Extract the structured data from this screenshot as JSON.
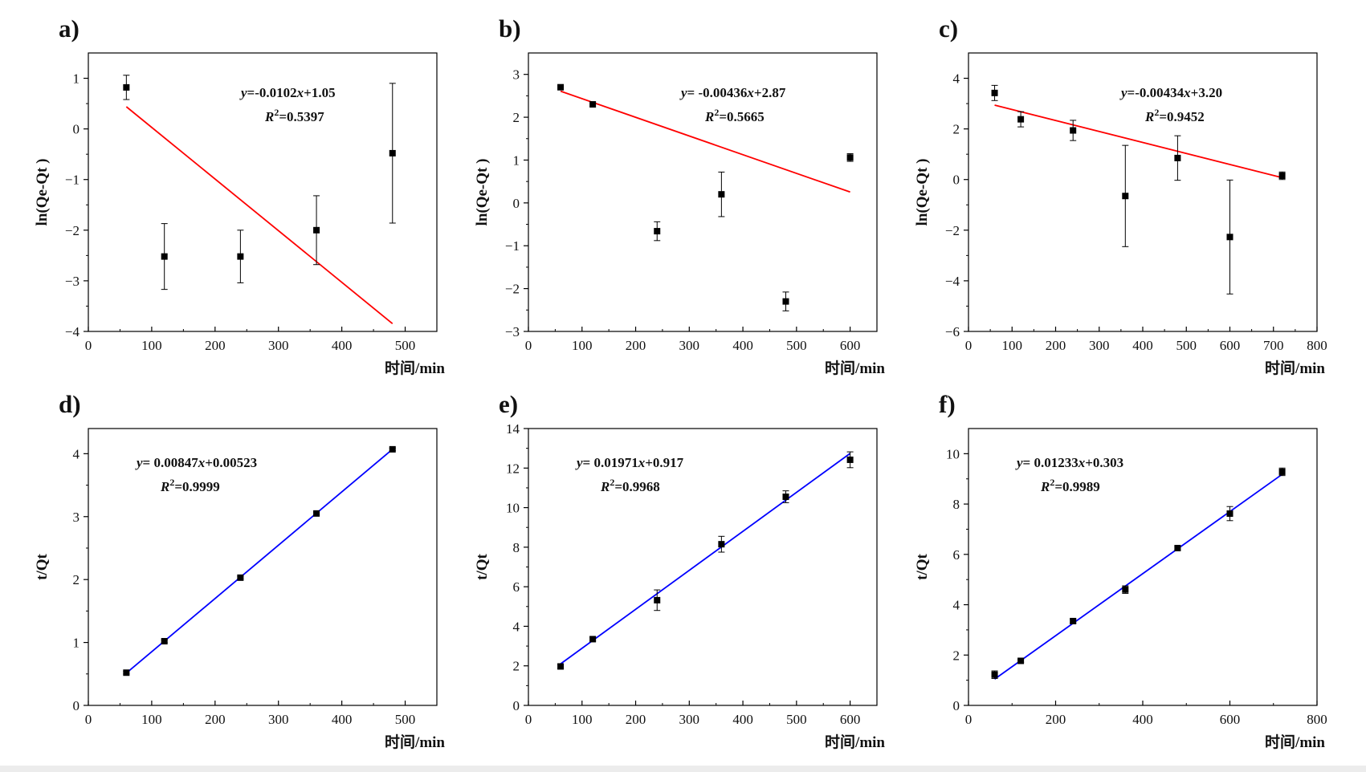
{
  "colors": {
    "fit_red": "#ff0000",
    "fit_blue": "#0000ff",
    "marker": "#000000",
    "axis": "#000000"
  },
  "chart_data": [
    {
      "label": "a)",
      "type": "scatter",
      "xlabel": "时间/min",
      "ylabel": "ln(Qe-Qt )",
      "xlim": [
        0,
        550
      ],
      "ylim": [
        -4,
        1.5
      ],
      "xticks": [
        0,
        100,
        200,
        300,
        400,
        500
      ],
      "yticks": [
        1,
        0,
        -1,
        -2,
        -3,
        -4
      ],
      "ytick_labels": [
        "1",
        "0",
        "−1",
        "−2",
        "−3",
        "−4"
      ],
      "points": [
        {
          "x": 60,
          "y": 0.82,
          "err": 0.24
        },
        {
          "x": 120,
          "y": -2.52,
          "err": 0.65
        },
        {
          "x": 240,
          "y": -2.52,
          "err": 0.52
        },
        {
          "x": 360,
          "y": -2.0,
          "err": 0.68
        },
        {
          "x": 480,
          "y": -0.48,
          "err": 1.38
        }
      ],
      "fit": {
        "slope": -0.0102,
        "intercept": 1.05,
        "x_range": [
          60,
          480
        ],
        "color": "#ff0000"
      },
      "equation": {
        "y_label": "y",
        "eq_rest": "=-0.0102",
        "x_var": "x",
        "intercept_part": "+1.05",
        "r_label": "R",
        "r_sup": "2",
        "r_value": "=0.5397"
      },
      "equation_anchor": "top-right"
    },
    {
      "label": "b)",
      "type": "scatter",
      "xlabel": "时间/min",
      "ylabel": "ln(Qe-Qt )",
      "xlim": [
        0,
        650
      ],
      "ylim": [
        -3,
        3.5
      ],
      "xticks": [
        0,
        100,
        200,
        300,
        400,
        500,
        600
      ],
      "yticks": [
        3,
        2,
        1,
        0,
        -1,
        -2,
        -3
      ],
      "ytick_labels": [
        "3",
        "2",
        "1",
        "0",
        "−1",
        "−2",
        "−3"
      ],
      "points": [
        {
          "x": 60,
          "y": 2.7,
          "err": 0
        },
        {
          "x": 120,
          "y": 2.3,
          "err": 0
        },
        {
          "x": 240,
          "y": -0.66,
          "err": 0.22
        },
        {
          "x": 360,
          "y": 0.2,
          "err": 0.52
        },
        {
          "x": 480,
          "y": -2.3,
          "err": 0.22
        },
        {
          "x": 600,
          "y": 1.06,
          "err": 0.09
        }
      ],
      "fit": {
        "slope": -0.00436,
        "intercept": 2.87,
        "x_range": [
          60,
          600
        ],
        "color": "#ff0000"
      },
      "equation": {
        "y_label": "y",
        "eq_rest": "= -0.00436",
        "x_var": "x",
        "intercept_part": "+2.87",
        "r_label": "R",
        "r_sup": "2",
        "r_value": "=0.5665"
      },
      "equation_anchor": "top-right"
    },
    {
      "label": "c)",
      "type": "scatter",
      "xlabel": "时间/min",
      "ylabel": "ln(Qe-Qt )",
      "xlim": [
        0,
        800
      ],
      "ylim": [
        -6,
        5
      ],
      "xticks": [
        0,
        100,
        200,
        300,
        400,
        500,
        600,
        700,
        800
      ],
      "yticks": [
        4,
        2,
        0,
        -2,
        -4,
        -6
      ],
      "ytick_labels": [
        "4",
        "2",
        "0",
        "−2",
        "−4",
        "−6"
      ],
      "points": [
        {
          "x": 60,
          "y": 3.42,
          "err": 0.3
        },
        {
          "x": 120,
          "y": 2.38,
          "err": 0.3
        },
        {
          "x": 240,
          "y": 1.94,
          "err": 0.4
        },
        {
          "x": 360,
          "y": -0.65,
          "err": 2.0
        },
        {
          "x": 480,
          "y": 0.85,
          "err": 0.88
        },
        {
          "x": 600,
          "y": -2.27,
          "err": 2.25
        },
        {
          "x": 720,
          "y": 0.15,
          "err": 0.15
        }
      ],
      "fit": {
        "slope": -0.00434,
        "intercept": 3.2,
        "x_range": [
          60,
          720
        ],
        "color": "#ff0000"
      },
      "equation": {
        "y_label": "y",
        "eq_rest": "=-0.00434",
        "x_var": "x",
        "intercept_part": "+3.20",
        "r_label": "R",
        "r_sup": "2",
        "r_value": "=0.9452"
      },
      "equation_anchor": "top-right"
    },
    {
      "label": "d)",
      "type": "scatter",
      "xlabel": "时间/min",
      "ylabel": "t/Qt",
      "xlim": [
        0,
        550
      ],
      "ylim": [
        0,
        4.4
      ],
      "xticks": [
        0,
        100,
        200,
        300,
        400,
        500
      ],
      "yticks": [
        4,
        3,
        2,
        1,
        0
      ],
      "ytick_labels": [
        "4",
        "3",
        "2",
        "1",
        "0"
      ],
      "points": [
        {
          "x": 60,
          "y": 0.52,
          "err": 0.02
        },
        {
          "x": 120,
          "y": 1.02,
          "err": 0.02
        },
        {
          "x": 240,
          "y": 2.03,
          "err": 0.02
        },
        {
          "x": 360,
          "y": 3.05,
          "err": 0.02
        },
        {
          "x": 480,
          "y": 4.07,
          "err": 0.02
        }
      ],
      "fit": {
        "slope": 0.00847,
        "intercept": 0.00523,
        "x_range": [
          60,
          480
        ],
        "color": "#0000ff"
      },
      "equation": {
        "y_label": "y",
        "eq_rest": "= 0.00847",
        "x_var": "x",
        "intercept_part": "+0.00523",
        "r_label": "R",
        "r_sup": "2",
        "r_value": "=0.9999"
      },
      "equation_anchor": "top-left"
    },
    {
      "label": "e)",
      "type": "scatter",
      "xlabel": "时间/min",
      "ylabel": "t/Qt",
      "xlim": [
        0,
        650
      ],
      "ylim": [
        0,
        14
      ],
      "xticks": [
        0,
        100,
        200,
        300,
        400,
        500,
        600
      ],
      "yticks": [
        14,
        12,
        10,
        8,
        6,
        4,
        2,
        0
      ],
      "ytick_labels": [
        "14",
        "12",
        "10",
        "8",
        "6",
        "4",
        "2",
        "0"
      ],
      "points": [
        {
          "x": 60,
          "y": 1.97,
          "err": 0.1
        },
        {
          "x": 120,
          "y": 3.35,
          "err": 0.1
        },
        {
          "x": 240,
          "y": 5.32,
          "err": 0.52
        },
        {
          "x": 360,
          "y": 8.15,
          "err": 0.4
        },
        {
          "x": 480,
          "y": 10.55,
          "err": 0.3
        },
        {
          "x": 600,
          "y": 12.42,
          "err": 0.4
        }
      ],
      "fit": {
        "slope": 0.01971,
        "intercept": 0.917,
        "x_range": [
          60,
          600
        ],
        "color": "#0000ff"
      },
      "equation": {
        "y_label": "y",
        "eq_rest": "= 0.01971",
        "x_var": "x",
        "intercept_part": "+0.917",
        "r_label": "R",
        "r_sup": "2",
        "r_value": "=0.9968"
      },
      "equation_anchor": "top-left"
    },
    {
      "label": "f)",
      "type": "scatter",
      "xlabel": "时间/min",
      "ylabel": "t/Qt",
      "xlim": [
        0,
        800
      ],
      "ylim": [
        0,
        11
      ],
      "xticks": [
        0,
        200,
        400,
        600,
        800
      ],
      "yticks": [
        10,
        8,
        6,
        4,
        2,
        0
      ],
      "ytick_labels": [
        "10",
        "8",
        "6",
        "4",
        "2",
        "0"
      ],
      "points": [
        {
          "x": 60,
          "y": 1.22,
          "err": 0.15
        },
        {
          "x": 120,
          "y": 1.77,
          "err": 0.06
        },
        {
          "x": 240,
          "y": 3.35,
          "err": 0.08
        },
        {
          "x": 360,
          "y": 4.6,
          "err": 0.15
        },
        {
          "x": 480,
          "y": 6.25,
          "err": 0.06
        },
        {
          "x": 600,
          "y": 7.62,
          "err": 0.28
        },
        {
          "x": 720,
          "y": 9.28,
          "err": 0.15
        }
      ],
      "fit": {
        "slope": 0.01233,
        "intercept": 0.303,
        "x_range": [
          60,
          720
        ],
        "color": "#0000ff"
      },
      "equation": {
        "y_label": "y",
        "eq_rest": "= 0.01233",
        "x_var": "x",
        "intercept_part": "+0.303",
        "r_label": "R",
        "r_sup": "2",
        "r_value": "=0.9989"
      },
      "equation_anchor": "top-left"
    }
  ]
}
